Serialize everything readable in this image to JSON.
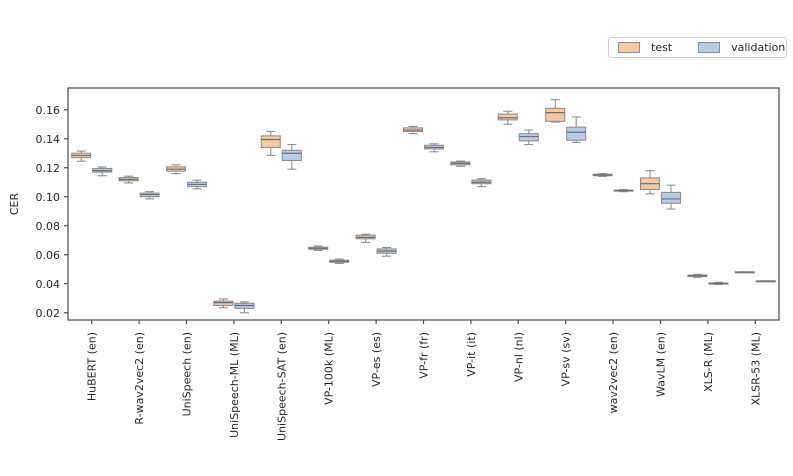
{
  "figure": {
    "background": "#ffffff",
    "axis_color": "#4a4a4a",
    "box_edge_color": "#8f8f8f",
    "median_color": "#6e6e6e"
  },
  "legend": {
    "entries": [
      {
        "label": "test",
        "color": "#f5c9a3"
      },
      {
        "label": "validation",
        "color": "#b8cce9"
      }
    ]
  },
  "chart_data": {
    "type": "boxplot",
    "title": "",
    "xlabel": "",
    "ylabel": "CER",
    "ylim": [
      0.015,
      0.175
    ],
    "yticks": [
      0.02,
      0.04,
      0.06,
      0.08,
      0.1,
      0.12,
      0.14,
      0.16
    ],
    "grid": false,
    "legend_position": "upper right",
    "categories": [
      "HuBERT (en)",
      "R-wav2vec2 (en)",
      "UniSpeech (en)",
      "UniSpeech-ML (ML)",
      "UniSpeech-SAT (en)",
      "VP-100k (ML)",
      "VP-es (es)",
      "VP-fr (fr)",
      "VP-it (it)",
      "VP-nl (nl)",
      "VP-sv (sv)",
      "wav2vec2 (en)",
      "WavLM (en)",
      "XLS-R (ML)",
      "XLSR-53 (ML)"
    ],
    "series": [
      {
        "name": "test",
        "color": "#f5c9a3",
        "boxes": [
          {
            "whislo": 0.1245,
            "q1": 0.127,
            "med": 0.1285,
            "q3": 0.13,
            "whishi": 0.1315
          },
          {
            "whislo": 0.1095,
            "q1": 0.111,
            "med": 0.112,
            "q3": 0.1133,
            "whishi": 0.1142
          },
          {
            "whislo": 0.116,
            "q1": 0.1177,
            "med": 0.119,
            "q3": 0.1206,
            "whishi": 0.122
          },
          {
            "whislo": 0.0235,
            "q1": 0.025,
            "med": 0.027,
            "q3": 0.028,
            "whishi": 0.0295
          },
          {
            "whislo": 0.1285,
            "q1": 0.134,
            "med": 0.1395,
            "q3": 0.142,
            "whishi": 0.145
          },
          {
            "whislo": 0.063,
            "q1": 0.0638,
            "med": 0.0645,
            "q3": 0.0652,
            "whishi": 0.066
          },
          {
            "whislo": 0.0685,
            "q1": 0.071,
            "med": 0.072,
            "q3": 0.0735,
            "whishi": 0.0742
          },
          {
            "whislo": 0.1435,
            "q1": 0.145,
            "med": 0.146,
            "q3": 0.1475,
            "whishi": 0.1485
          },
          {
            "whislo": 0.121,
            "q1": 0.122,
            "med": 0.123,
            "q3": 0.124,
            "whishi": 0.1246
          },
          {
            "whislo": 0.15,
            "q1": 0.153,
            "med": 0.1545,
            "q3": 0.157,
            "whishi": 0.159
          },
          {
            "whislo": 0.1515,
            "q1": 0.152,
            "med": 0.158,
            "q3": 0.161,
            "whishi": 0.167
          },
          {
            "whislo": 0.114,
            "q1": 0.1145,
            "med": 0.115,
            "q3": 0.1155,
            "whishi": 0.116
          },
          {
            "whislo": 0.102,
            "q1": 0.105,
            "med": 0.109,
            "q3": 0.113,
            "whishi": 0.118
          },
          {
            "whislo": 0.0445,
            "q1": 0.045,
            "med": 0.0455,
            "q3": 0.046,
            "whishi": 0.0465
          },
          {
            "whislo": 0.0478,
            "q1": 0.0478,
            "med": 0.048,
            "q3": 0.0482,
            "whishi": 0.0482
          }
        ]
      },
      {
        "name": "validation",
        "color": "#b8cce9",
        "boxes": [
          {
            "whislo": 0.1145,
            "q1": 0.117,
            "med": 0.118,
            "q3": 0.1195,
            "whishi": 0.1205
          },
          {
            "whislo": 0.0985,
            "q1": 0.1,
            "med": 0.1015,
            "q3": 0.1025,
            "whishi": 0.1035
          },
          {
            "whislo": 0.1055,
            "q1": 0.107,
            "med": 0.1085,
            "q3": 0.11,
            "whishi": 0.1115
          },
          {
            "whislo": 0.02,
            "q1": 0.023,
            "med": 0.025,
            "q3": 0.0265,
            "whishi": 0.0275
          },
          {
            "whislo": 0.119,
            "q1": 0.125,
            "med": 0.13,
            "q3": 0.132,
            "whishi": 0.136
          },
          {
            "whislo": 0.054,
            "q1": 0.0548,
            "med": 0.0555,
            "q3": 0.0562,
            "whishi": 0.057
          },
          {
            "whislo": 0.059,
            "q1": 0.061,
            "med": 0.0625,
            "q3": 0.064,
            "whishi": 0.065
          },
          {
            "whislo": 0.131,
            "q1": 0.133,
            "med": 0.134,
            "q3": 0.1355,
            "whishi": 0.1365
          },
          {
            "whislo": 0.107,
            "q1": 0.109,
            "med": 0.11,
            "q3": 0.1115,
            "whishi": 0.1125
          },
          {
            "whislo": 0.136,
            "q1": 0.1385,
            "med": 0.1415,
            "q3": 0.1435,
            "whishi": 0.146
          },
          {
            "whislo": 0.1375,
            "q1": 0.139,
            "med": 0.1445,
            "q3": 0.148,
            "whishi": 0.155
          },
          {
            "whislo": 0.1035,
            "q1": 0.104,
            "med": 0.1042,
            "q3": 0.1046,
            "whishi": 0.105
          },
          {
            "whislo": 0.0915,
            "q1": 0.0955,
            "med": 0.0985,
            "q3": 0.103,
            "whishi": 0.108
          },
          {
            "whislo": 0.0395,
            "q1": 0.04,
            "med": 0.0402,
            "q3": 0.0405,
            "whishi": 0.041
          },
          {
            "whislo": 0.0415,
            "q1": 0.0415,
            "med": 0.0418,
            "q3": 0.042,
            "whishi": 0.042
          }
        ]
      }
    ]
  }
}
